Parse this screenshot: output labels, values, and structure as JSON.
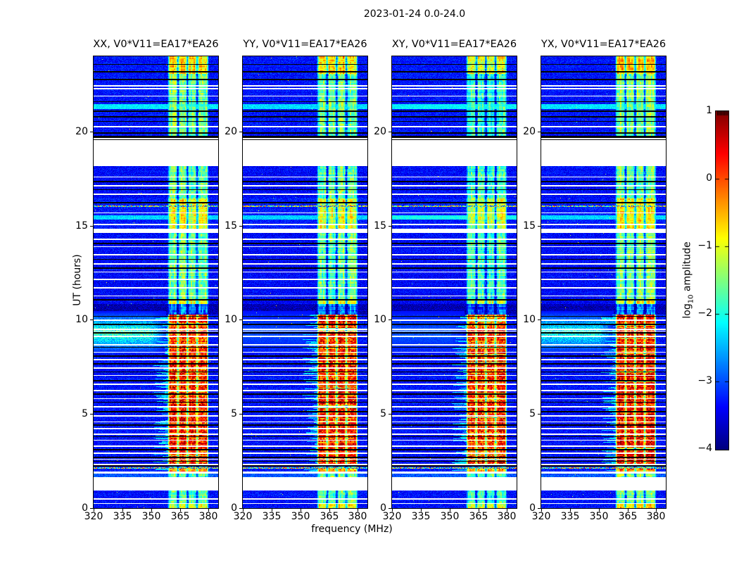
{
  "chart_data": {
    "type": "heatmap",
    "title": "2023-01-24 0.0-24.0",
    "xlabel": "frequency (MHz)",
    "ylabel": "UT (hours)",
    "x_ticks": [
      320,
      335,
      350,
      365,
      380
    ],
    "y_ticks": [
      0,
      5,
      10,
      15,
      20
    ],
    "x_range": [
      320,
      385
    ],
    "y_range": [
      0,
      24
    ],
    "colormap": "jet",
    "grid": false,
    "colorbar": {
      "label_prefix": "log",
      "label_sub": "10",
      "label_suffix": " amplitude",
      "ticks": [
        1,
        0,
        -1,
        -2,
        -3,
        -4
      ],
      "range": [
        -4,
        1
      ]
    },
    "panels": [
      {
        "title": "XX, V0*V11=EA17*EA26",
        "seed": 11,
        "blob": 1.0,
        "strong_offset": 0,
        "mid_offset": 0,
        "top_offset": 0
      },
      {
        "title": "YY, V0*V11=EA17*EA26",
        "seed": 22,
        "blob": 0.2,
        "strong_offset": -0.03,
        "mid_offset": -0.05,
        "top_offset": -0.08
      },
      {
        "title": "XY, V0*V11=EA17*EA26",
        "seed": 33,
        "blob": 0.25,
        "strong_offset": -0.12,
        "mid_offset": -0.25,
        "top_offset": -0.35
      },
      {
        "title": "YX, V0*V11=EA17*EA26",
        "seed": 44,
        "blob": 0.85,
        "strong_offset": 0.03,
        "mid_offset": 0,
        "top_offset": -0.02
      }
    ],
    "features": {
      "rfi_band_mhz": [
        359,
        380
      ],
      "band_column_gaps_mhz": [
        364,
        369,
        374
      ],
      "edge_glow_mhz": [
        351,
        360
      ],
      "left_blob": {
        "hours": [
          8.2,
          10.45
        ],
        "mhz_max": 358
      },
      "epochs": [
        {
          "t": [
            0.0,
            0.22
          ],
          "band": -0.8,
          "bg": -3.3
        },
        {
          "t": [
            0.22,
            0.93
          ],
          "band": -1.6,
          "bg": -3.3
        },
        {
          "t": [
            0.93,
            1.64
          ],
          "gap": true
        },
        {
          "t": [
            1.64,
            1.83
          ],
          "band": -1.5,
          "bg": -2.95
        },
        {
          "t": [
            1.83,
            1.94
          ],
          "gap": true
        },
        {
          "t": [
            1.94,
            2.13
          ],
          "band": -0.3,
          "bg": -3.25,
          "glow": true
        },
        {
          "t": [
            2.13,
            2.21
          ],
          "band": -2.2,
          "bg": -3.3
        },
        {
          "t": [
            2.21,
            2.29
          ],
          "black": true
        },
        {
          "t": [
            2.29,
            10.28
          ],
          "band": 0.25,
          "bg": -3.3,
          "strong": true
        },
        {
          "t": [
            10.28,
            10.85
          ],
          "band": -2.7,
          "bg": -3.75
        },
        {
          "t": [
            10.85,
            11.02
          ],
          "band": -0.85,
          "bg": -3.4
        },
        {
          "t": [
            11.02,
            14.62
          ],
          "band": -1.55,
          "bg": -3.35
        },
        {
          "t": [
            14.62,
            14.84
          ],
          "gap": true
        },
        {
          "t": [
            14.84,
            16.45
          ],
          "band": -0.95,
          "bg": -3.25
        },
        {
          "t": [
            16.45,
            18.15
          ],
          "band": -1.6,
          "bg": -3.35
        },
        {
          "t": [
            18.15,
            19.55
          ],
          "gap": true
        },
        {
          "t": [
            19.55,
            19.78
          ],
          "black": true
        },
        {
          "t": [
            19.78,
            23.05
          ],
          "band": -1.5,
          "bg": -3.3,
          "top": true
        },
        {
          "t": [
            23.05,
            24.0
          ],
          "band": -0.65,
          "bg": -3.3,
          "top": true
        }
      ],
      "white_lines_h": [
        0.26,
        0.52,
        2.34,
        2.62,
        2.95,
        3.32,
        3.62,
        3.95,
        4.28,
        4.6,
        4.95,
        5.42,
        5.85,
        6.28,
        6.62,
        7.05,
        7.48,
        7.92,
        8.3,
        8.72,
        9.15,
        9.42,
        9.55,
        10.02,
        11.28,
        11.72,
        12.18,
        12.55,
        13.02,
        13.48,
        13.92,
        14.32,
        15.1,
        15.7,
        16.7,
        17.15,
        17.62,
        19.67,
        20.3,
        21.9,
        22.32,
        22.48
      ],
      "black_lines_h": [
        2.5,
        2.72,
        3.15,
        3.8,
        4.45,
        5.15,
        5.65,
        6.1,
        6.8,
        7.25,
        7.7,
        8.1,
        8.55,
        9.35,
        9.8,
        10.22,
        11.1,
        12.8,
        13.25,
        14.08,
        16.25,
        16.92,
        17.4,
        19.95,
        20.55,
        20.82,
        21.12,
        21.6,
        22.8,
        23.22,
        23.58
      ],
      "speckle_lines_h": [
        2.17,
        16.08
      ],
      "cyan_streaks": [
        {
          "t": 21.32,
          "hw": 0.14,
          "gain": [
            0.7,
            0.55,
            0.8,
            0.65
          ]
        },
        {
          "t": 15.45,
          "hw": 0.12,
          "gain": [
            0.5,
            0.45,
            1.0,
            0.5
          ]
        }
      ]
    }
  }
}
